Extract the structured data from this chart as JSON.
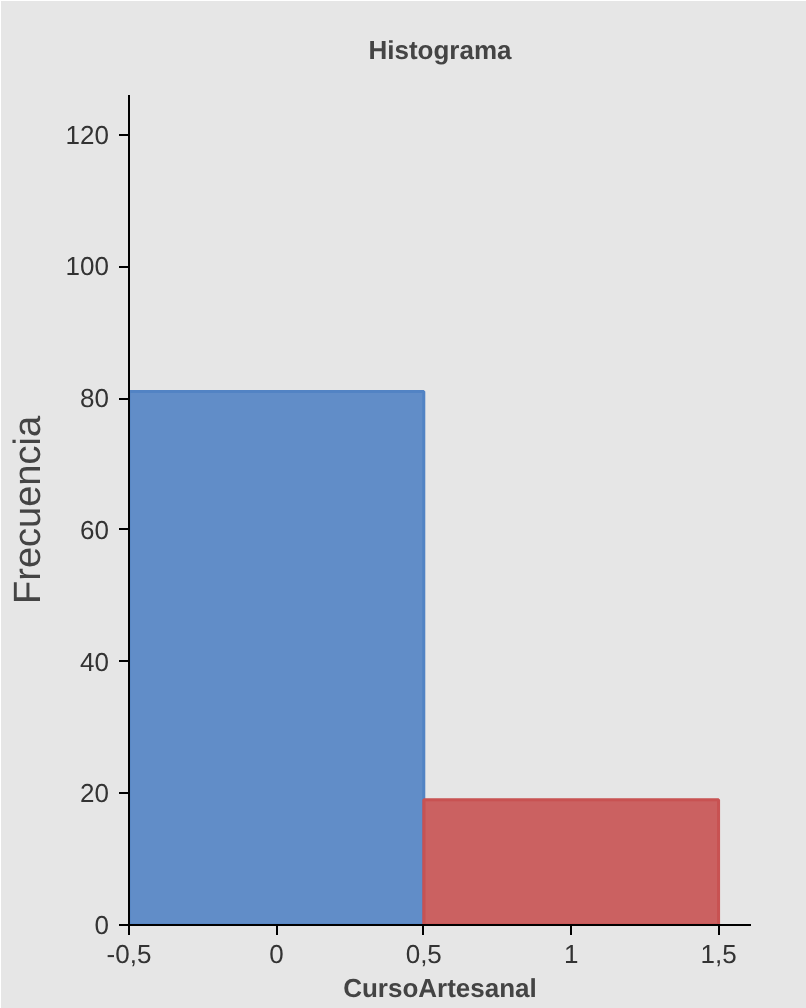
{
  "chart_data": {
    "type": "histogram",
    "title": "Histograma",
    "xlabel": "CursoArtesanal",
    "ylabel": "Frecuencia",
    "bins": [
      -0.5,
      0.5,
      1.5
    ],
    "values": [
      81,
      19
    ],
    "colors": [
      "#5283c4",
      "#c85252"
    ],
    "xlim": [
      -0.5,
      1.61
    ],
    "ylim": [
      0,
      126
    ],
    "xticks": [
      {
        "value": -0.5,
        "label": "-0,5"
      },
      0,
      {
        "value": 0.5,
        "label": "0,5"
      },
      1,
      {
        "value": 1.5,
        "label": "1,5"
      }
    ],
    "yticks": [
      0,
      20,
      40,
      60,
      80,
      100,
      120
    ]
  }
}
